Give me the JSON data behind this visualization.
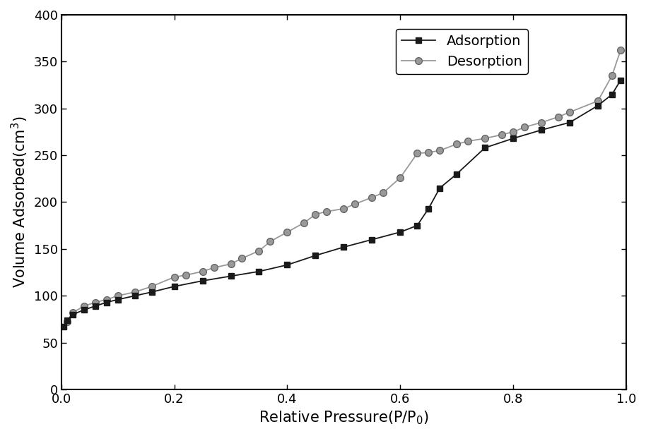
{
  "adsorption_x": [
    0.004,
    0.01,
    0.02,
    0.04,
    0.06,
    0.08,
    0.1,
    0.13,
    0.16,
    0.2,
    0.25,
    0.3,
    0.35,
    0.4,
    0.45,
    0.5,
    0.55,
    0.6,
    0.63,
    0.65,
    0.67,
    0.7,
    0.75,
    0.8,
    0.85,
    0.9,
    0.95,
    0.975,
    0.99
  ],
  "adsorption_y": [
    67,
    74,
    80,
    85,
    89,
    93,
    96,
    100,
    104,
    110,
    116,
    121,
    126,
    133,
    143,
    152,
    160,
    168,
    175,
    193,
    215,
    230,
    258,
    268,
    277,
    285,
    303,
    315,
    330
  ],
  "desorption_x": [
    0.99,
    0.975,
    0.95,
    0.9,
    0.88,
    0.85,
    0.82,
    0.8,
    0.78,
    0.75,
    0.72,
    0.7,
    0.67,
    0.65,
    0.63,
    0.6,
    0.57,
    0.55,
    0.52,
    0.5,
    0.47,
    0.45,
    0.43,
    0.4,
    0.37,
    0.35,
    0.32,
    0.3,
    0.27,
    0.25,
    0.22,
    0.2,
    0.16,
    0.13,
    0.1,
    0.08,
    0.06,
    0.04,
    0.02,
    0.01
  ],
  "desorption_y": [
    362,
    335,
    308,
    296,
    291,
    285,
    280,
    275,
    272,
    268,
    265,
    262,
    255,
    253,
    252,
    226,
    210,
    205,
    198,
    193,
    190,
    187,
    178,
    168,
    158,
    148,
    140,
    134,
    130,
    126,
    122,
    120,
    110,
    104,
    100,
    96,
    93,
    89,
    82,
    72
  ],
  "adsorption_color": "#1a1a1a",
  "desorption_color": "#999999",
  "adsorption_marker": "s",
  "desorption_marker": "o",
  "line_width": 1.3,
  "marker_size": 6,
  "xlabel": "Relative Pressure(P/P$_0$)",
  "ylabel": "Volume Adsorbed(cm$^3$)",
  "xlim": [
    0.0,
    1.0
  ],
  "ylim": [
    0,
    400
  ],
  "xticks": [
    0.0,
    0.2,
    0.4,
    0.6,
    0.8,
    1.0
  ],
  "yticks": [
    0,
    50,
    100,
    150,
    200,
    250,
    300,
    350,
    400
  ],
  "legend_labels": [
    "Adsorption",
    "Desorption"
  ],
  "legend_loc": "upper left",
  "fontsize_labels": 15,
  "fontsize_ticks": 13,
  "fontsize_legend": 14,
  "background_color": "#ffffff",
  "figure_facecolor": "#ffffff"
}
